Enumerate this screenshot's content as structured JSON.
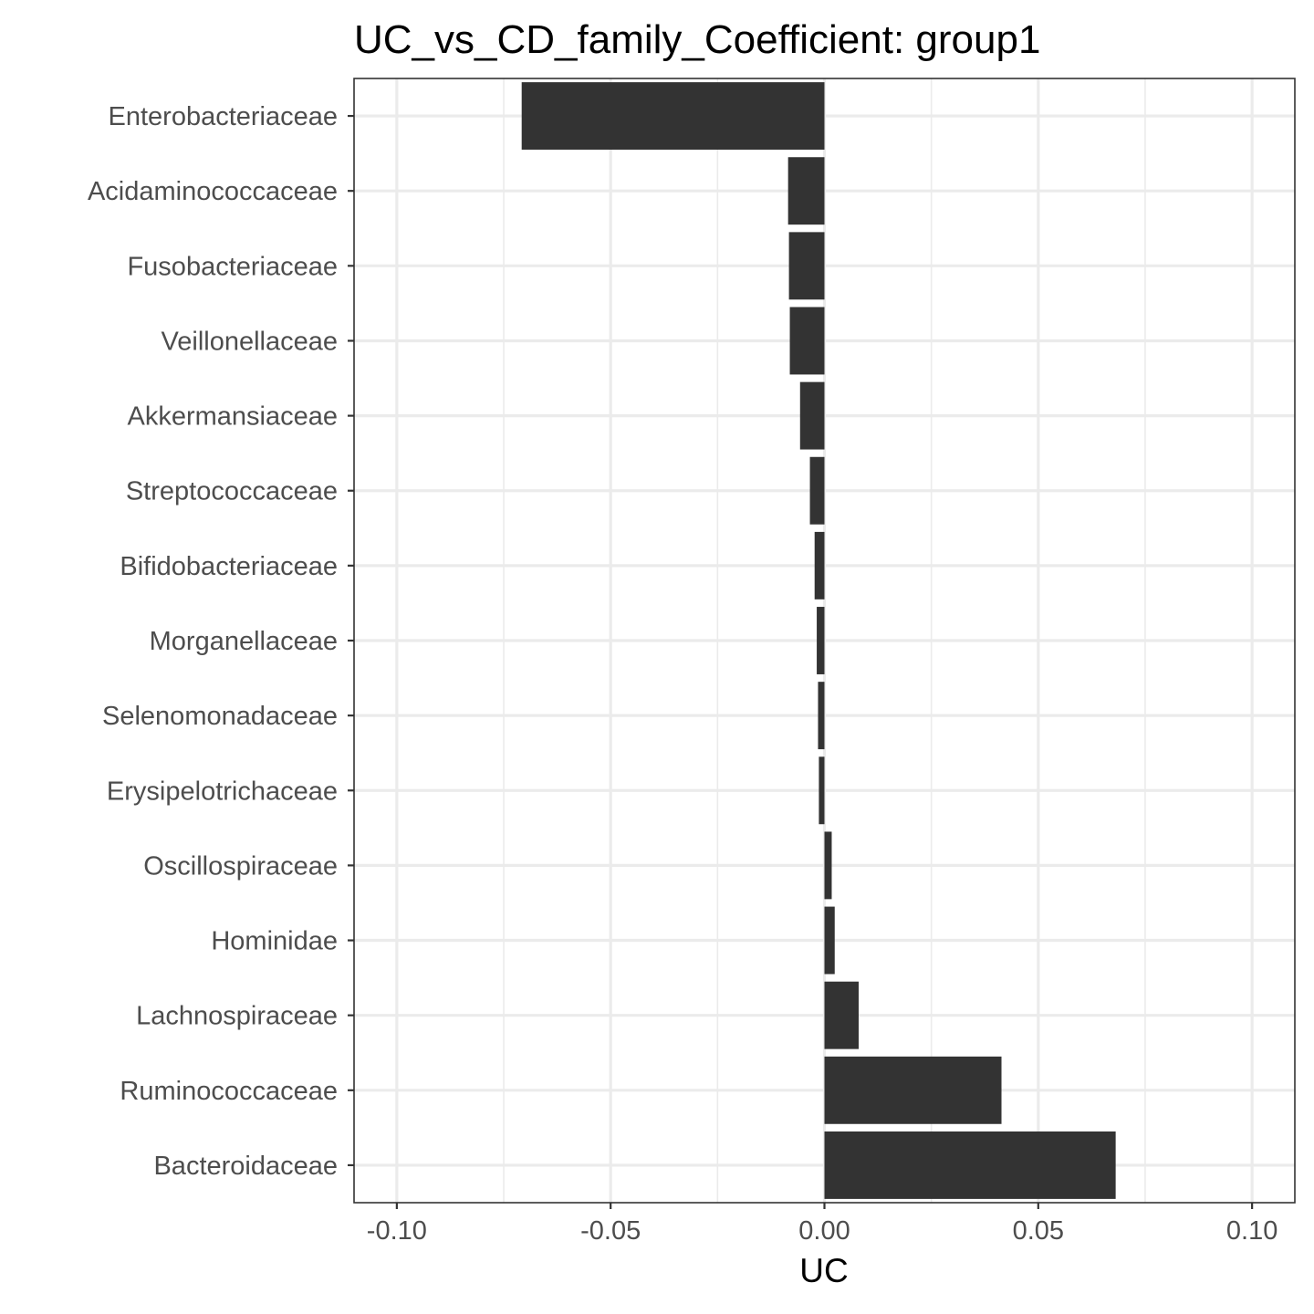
{
  "chart_data": {
    "type": "bar",
    "orientation": "horizontal",
    "title": "UC_vs_CD_family_Coefficient: group1",
    "xlabel": "UC",
    "ylabel": "",
    "xlim": [
      -0.11,
      0.11
    ],
    "x_ticks": [
      -0.1,
      -0.05,
      0.0,
      0.05,
      0.1
    ],
    "x_tick_labels": [
      "-0.10",
      "-0.05",
      "0.00",
      "0.05",
      "0.10"
    ],
    "grid": true,
    "legend": "none",
    "bar_color": "#333333",
    "categories": [
      "Enterobacteriaceae",
      "Acidaminococcaceae",
      "Fusobacteriaceae",
      "Veillonellaceae",
      "Akkermansiaceae",
      "Streptococcaceae",
      "Bifidobacteriaceae",
      "Morganellaceae",
      "Selenomonadaceae",
      "Erysipelotrichaceae",
      "Oscillospiraceae",
      "Hominidae",
      "Lachnospiraceae",
      "Ruminococcaceae",
      "Bacteroidaceae"
    ],
    "values": [
      -0.0708,
      -0.0085,
      -0.0083,
      -0.0081,
      -0.0057,
      -0.0034,
      -0.0023,
      -0.0018,
      -0.0015,
      -0.0013,
      0.0017,
      0.0024,
      0.008,
      0.0414,
      0.0681
    ]
  }
}
